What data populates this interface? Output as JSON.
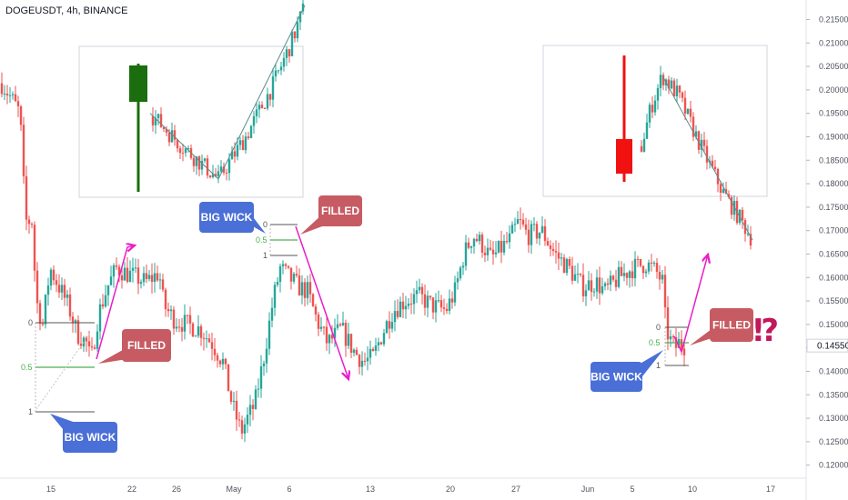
{
  "header": {
    "symbol_line": "DOGEUSDT, 4h, BINANCE"
  },
  "colors": {
    "up": "#26a69a",
    "down": "#ef5350",
    "blue_label": "#4a6fd6",
    "red_label": "#c75b63",
    "arrow": "#e91ec7",
    "fib_green": "#4caf50",
    "demo_green": "#1b6e0d",
    "demo_red": "#f21111",
    "exclaim": "#c2185b"
  },
  "price_axis": {
    "ticks": [
      "0.21500",
      "0.21000",
      "0.20500",
      "0.20000",
      "0.19500",
      "0.19000",
      "0.18500",
      "0.18000",
      "0.17500",
      "0.17000",
      "0.16500",
      "0.16000",
      "0.15500",
      "0.15000",
      "0.14500",
      "0.14000",
      "0.13500",
      "0.13000",
      "0.12500",
      "0.12000"
    ],
    "current": "0.14550"
  },
  "time_axis": {
    "ticks": [
      "15",
      "22",
      "26",
      "May",
      "6",
      "13",
      "20",
      "27",
      "Jun",
      "5",
      "10",
      "17"
    ]
  },
  "fib": {
    "left": {
      "l0": "0",
      "l05": "0.5",
      "l1": "1"
    },
    "middle": {
      "l0": "0",
      "l05": "0.5",
      "l1": "1"
    },
    "right": {
      "l0": "0",
      "l05": "0.5",
      "l1": "1"
    }
  },
  "callouts": {
    "big_wick_left": "BIG WICK",
    "filled_left": "FILLED",
    "big_wick_mid": "BIG WICK",
    "filled_mid": "FILLED",
    "big_wick_right": "BIG WICK",
    "filled_right": "FILLED",
    "exclaim": "⁉"
  },
  "chart_data": {
    "type": "candlestick",
    "symbol": "DOGEUSDT",
    "timeframe": "4h",
    "exchange": "BINANCE",
    "ylim": [
      0.118,
      0.218
    ],
    "current_price": 0.1455,
    "x_ticks": [
      "15",
      "22",
      "26",
      "May",
      "6",
      "13",
      "20",
      "27",
      "Jun",
      "5",
      "10",
      "17"
    ],
    "path": [
      [
        0,
        0.202
      ],
      [
        10,
        0.199
      ],
      [
        22,
        0.195
      ],
      [
        28,
        0.172
      ],
      [
        35,
        0.172
      ],
      [
        40,
        0.155
      ],
      [
        47,
        0.15
      ],
      [
        55,
        0.162
      ],
      [
        65,
        0.158
      ],
      [
        75,
        0.154
      ],
      [
        85,
        0.148
      ],
      [
        95,
        0.146
      ],
      [
        100,
        0.142
      ],
      [
        108,
        0.152
      ],
      [
        118,
        0.158
      ],
      [
        128,
        0.162
      ],
      [
        138,
        0.161
      ],
      [
        150,
        0.16
      ],
      [
        160,
        0.159
      ],
      [
        175,
        0.161
      ],
      [
        180,
        0.154
      ],
      [
        192,
        0.151
      ],
      [
        205,
        0.15
      ],
      [
        220,
        0.149
      ],
      [
        233,
        0.146
      ],
      [
        245,
        0.142
      ],
      [
        255,
        0.133
      ],
      [
        265,
        0.127
      ],
      [
        272,
        0.13
      ],
      [
        280,
        0.133
      ],
      [
        290,
        0.143
      ],
      [
        300,
        0.155
      ],
      [
        308,
        0.162
      ],
      [
        318,
        0.16
      ],
      [
        328,
        0.158
      ],
      [
        338,
        0.157
      ],
      [
        348,
        0.151
      ],
      [
        360,
        0.146
      ],
      [
        375,
        0.149
      ],
      [
        390,
        0.144
      ],
      [
        400,
        0.142
      ],
      [
        410,
        0.143
      ],
      [
        420,
        0.148
      ],
      [
        432,
        0.153
      ],
      [
        445,
        0.155
      ],
      [
        460,
        0.156
      ],
      [
        475,
        0.154
      ],
      [
        490,
        0.153
      ],
      [
        500,
        0.157
      ],
      [
        510,
        0.165
      ],
      [
        520,
        0.169
      ],
      [
        530,
        0.167
      ],
      [
        540,
        0.164
      ],
      [
        550,
        0.166
      ],
      [
        560,
        0.168
      ],
      [
        570,
        0.172
      ],
      [
        580,
        0.169
      ],
      [
        595,
        0.17
      ],
      [
        610,
        0.165
      ],
      [
        625,
        0.162
      ],
      [
        640,
        0.158
      ],
      [
        655,
        0.159
      ],
      [
        665,
        0.157
      ],
      [
        680,
        0.16
      ],
      [
        695,
        0.162
      ],
      [
        710,
        0.163
      ],
      [
        722,
        0.161
      ],
      [
        728,
        0.159
      ],
      [
        732,
        0.149
      ],
      [
        738,
        0.146
      ],
      [
        742,
        0.145
      ],
      [
        746,
        0.146
      ],
      [
        752,
        0.1455
      ]
    ],
    "illustrations": {
      "left_box": {
        "candle": "bullish big-wick example",
        "path": [
          [
            165,
            0.195
          ],
          [
            200,
            0.188
          ],
          [
            240,
            0.181
          ],
          [
            270,
            0.19
          ],
          [
            300,
            0.201
          ],
          [
            320,
            0.21
          ],
          [
            335,
            0.218
          ]
        ]
      },
      "right_box": {
        "candle": "bearish big-wick example",
        "path": [
          [
            705,
            0.188
          ],
          [
            715,
            0.196
          ],
          [
            728,
            0.203
          ],
          [
            745,
            0.199
          ],
          [
            770,
            0.188
          ],
          [
            795,
            0.178
          ],
          [
            815,
            0.172
          ],
          [
            827,
            0.168
          ]
        ]
      }
    }
  }
}
